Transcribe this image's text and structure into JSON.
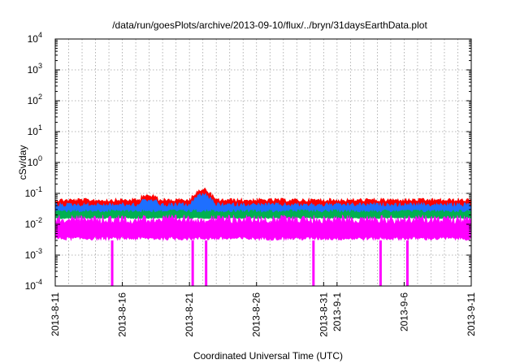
{
  "chart_data": {
    "type": "area",
    "title": "/data/run/goesPlots/archive/2013-09-10/flux/../bryn/31daysEarthData.plot",
    "xlabel": "Coordinated Universal Time (UTC)",
    "ylabel": "cSv/day",
    "yscale": "log",
    "ylim": [
      0.0001,
      10000
    ],
    "xlim": [
      "2013-08-11",
      "2013-09-11"
    ],
    "grid": true,
    "x_ticks": [
      "2013-8-11",
      "2013-8-16",
      "2013-8-21",
      "2013-8-26",
      "2013-8-31",
      "2013-9-1",
      "2013-9-6",
      "2013-9-11"
    ],
    "y_ticks": [
      {
        "base": "10",
        "exp": "-4",
        "value": 0.0001
      },
      {
        "base": "10",
        "exp": "-3",
        "value": 0.001
      },
      {
        "base": "10",
        "exp": "-2",
        "value": 0.01
      },
      {
        "base": "10",
        "exp": "-1",
        "value": 0.1
      },
      {
        "base": "10",
        "exp": "0",
        "value": 1
      },
      {
        "base": "10",
        "exp": "1",
        "value": 10
      },
      {
        "base": "10",
        "exp": "2",
        "value": 100
      },
      {
        "base": "10",
        "exp": "3",
        "value": 1000
      },
      {
        "base": "10",
        "exp": "4",
        "value": 10000
      }
    ],
    "series": [
      {
        "color": "#ff0000",
        "band": [
          0.03,
          0.07
        ],
        "peak": {
          "date": "2013-08-22",
          "value": 0.17
        }
      },
      {
        "color": "#1e6fff",
        "band": [
          0.02,
          0.05
        ],
        "peak": {
          "date": "2013-08-22",
          "value": 0.12
        }
      },
      {
        "color": "#00b050",
        "band": [
          0.015,
          0.03
        ]
      },
      {
        "color": "#ff00ff",
        "band": [
          0.003,
          0.02
        ],
        "dropouts": [
          "2013-08-15",
          "2013-08-21",
          "2013-08-22",
          "2013-08-30",
          "2013-09-04",
          "2013-09-06"
        ]
      }
    ]
  }
}
